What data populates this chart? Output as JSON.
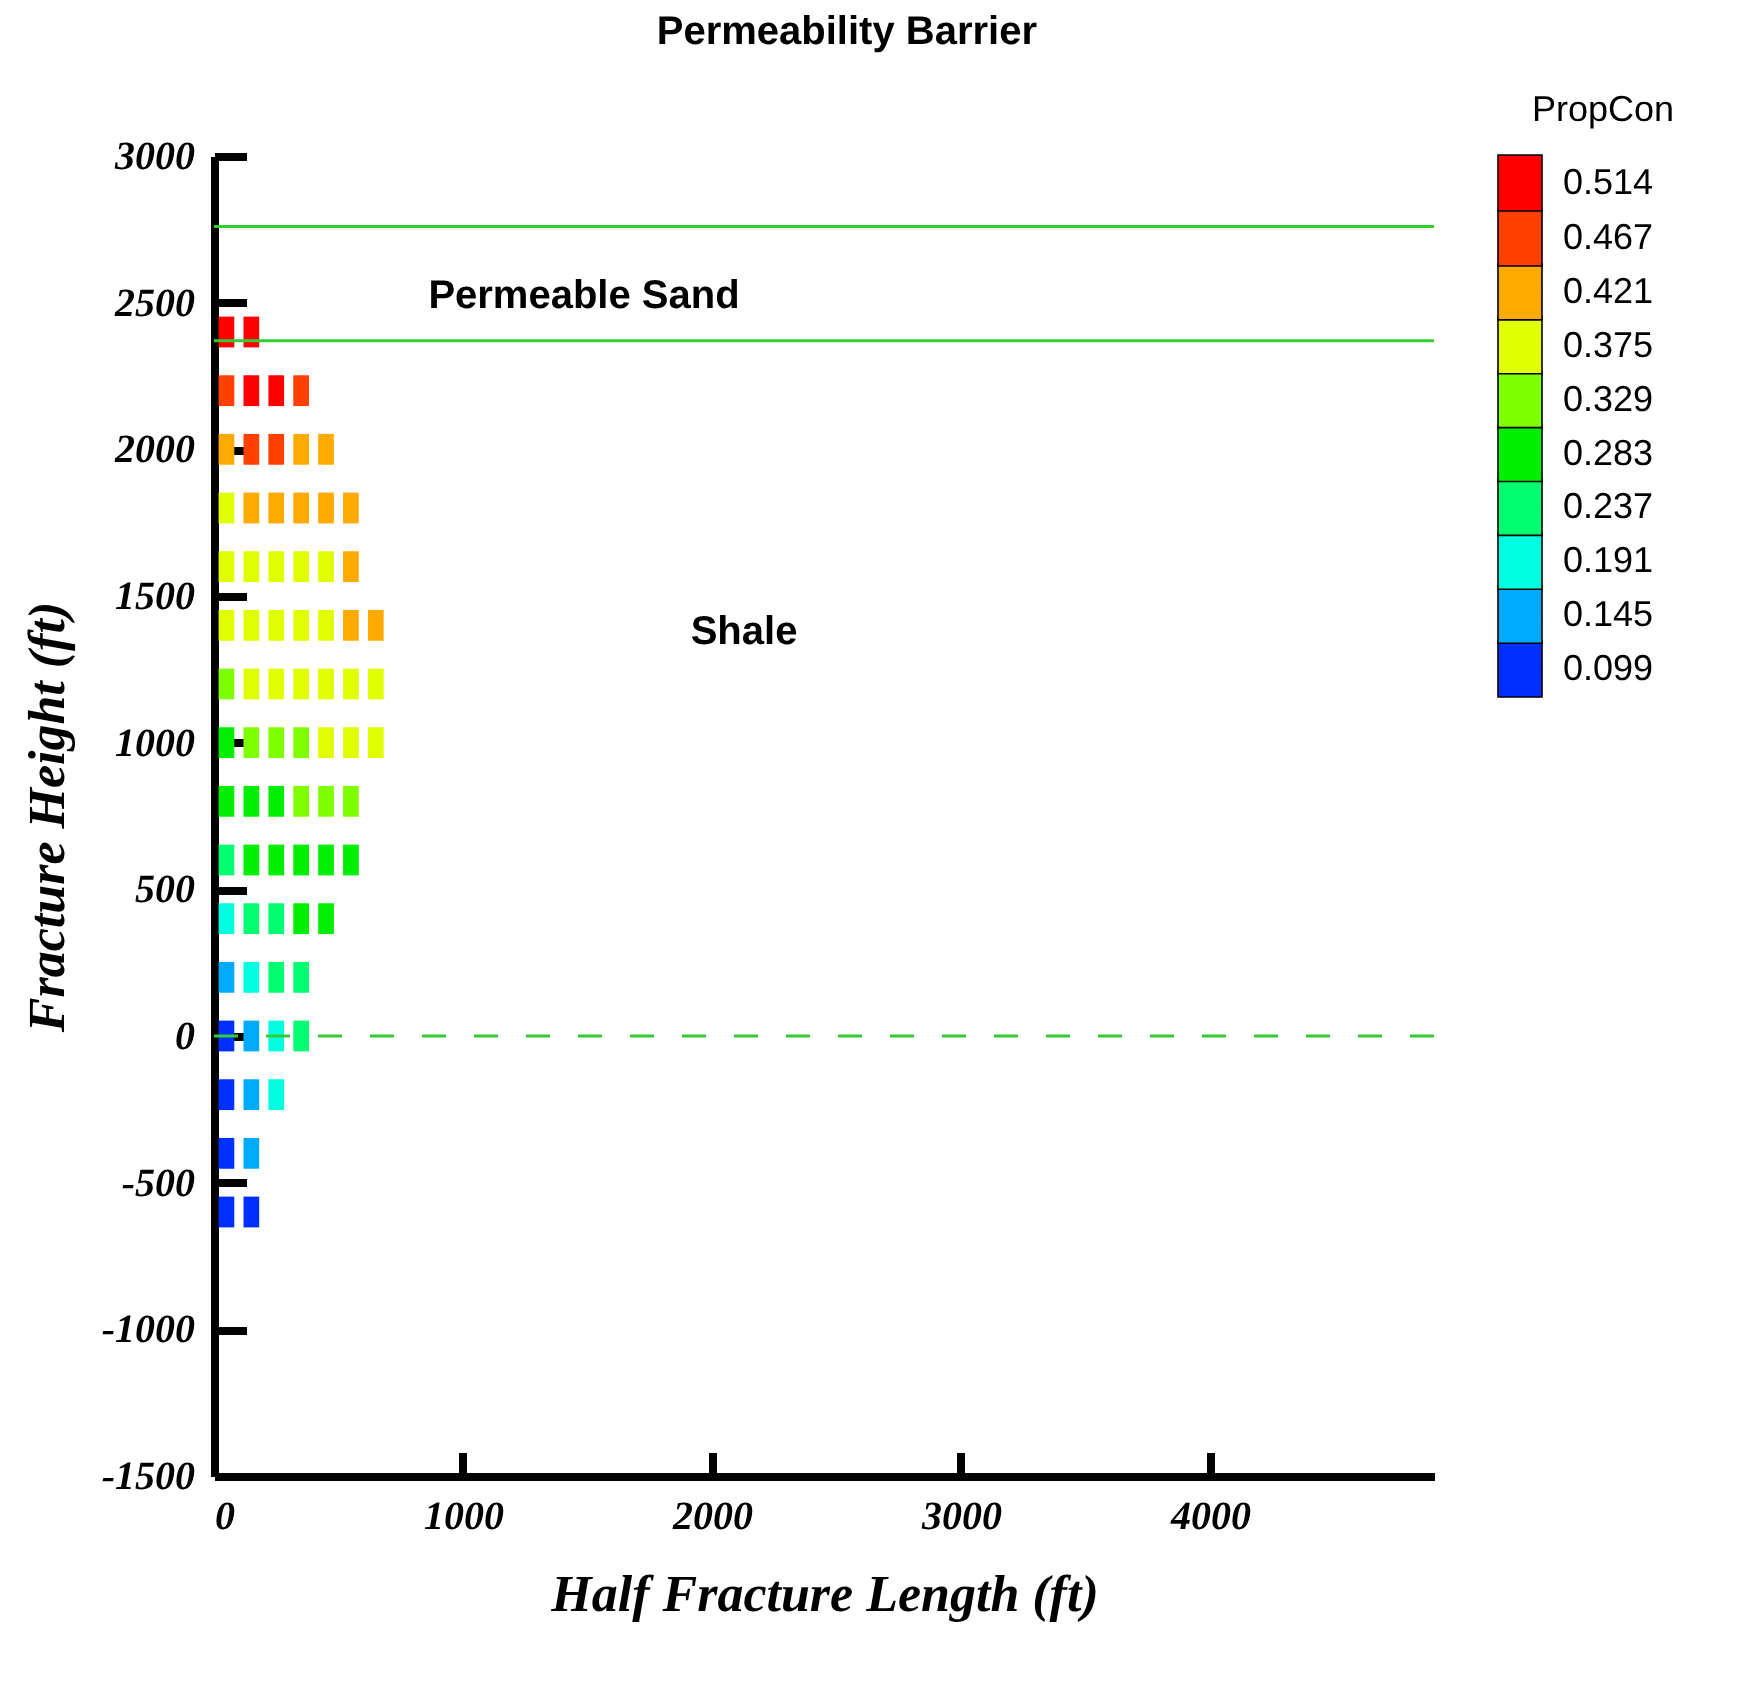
{
  "chart_data": {
    "type": "scatter",
    "title": "Permeability Barrier",
    "xlabel": "Half Fracture Length (ft)",
    "ylabel": "Fracture Height (ft)",
    "clabel": "PropCon",
    "clim": [
      0.076,
      0.537
    ],
    "cticks": [
      0.099,
      0.145,
      0.191,
      0.237,
      0.283,
      0.329,
      0.375,
      0.421,
      0.467,
      0.514
    ],
    "colors": [
      "#0030ff",
      "#00aaff",
      "#00ffe0",
      "#00ff70",
      "#00ee00",
      "#80ff00",
      "#e0ff00",
      "#ffaa00",
      "#ff4000",
      "#ff0000"
    ],
    "xlim": [
      0,
      4900
    ],
    "xticks": [
      0,
      1000,
      2000,
      3000,
      4000
    ],
    "ylim": [
      -1500,
      3000
    ],
    "yticks": [
      -1500,
      -1000,
      -500,
      0,
      500,
      1000,
      1500,
      2000,
      2500,
      3000
    ],
    "grid": false,
    "marker": "square",
    "series": [
      {
        "x": [
          50,
          150,
          50,
          150,
          250,
          350,
          50,
          150,
          250,
          350,
          450,
          50,
          150,
          250,
          350,
          450,
          550,
          50,
          150,
          250,
          350,
          450,
          550,
          50,
          150,
          250,
          350,
          450,
          550,
          650,
          50,
          150,
          250,
          350,
          450,
          550,
          650,
          50,
          150,
          250,
          350,
          450,
          550,
          650,
          50,
          150,
          250,
          350,
          450,
          550,
          50,
          150,
          250,
          350,
          450,
          550,
          50,
          150,
          250,
          350,
          450,
          50,
          150,
          250,
          350,
          50,
          150,
          250,
          350,
          50,
          150,
          250,
          50,
          150,
          50,
          150
        ],
        "values": [
          2400,
          2400,
          2200,
          2200,
          2200,
          2200,
          2000,
          2000,
          2000,
          2000,
          2000,
          1800,
          1800,
          1800,
          1800,
          1800,
          1800,
          1600,
          1600,
          1600,
          1600,
          1600,
          1600,
          1400,
          1400,
          1400,
          1400,
          1400,
          1400,
          1400,
          1200,
          1200,
          1200,
          1200,
          1200,
          1200,
          1200,
          1000,
          1000,
          1000,
          1000,
          1000,
          1000,
          1000,
          800,
          800,
          800,
          800,
          800,
          800,
          600,
          600,
          600,
          600,
          600,
          600,
          400,
          400,
          400,
          400,
          400,
          200,
          200,
          200,
          200,
          0,
          0,
          0,
          0,
          -200,
          -200,
          -200,
          -400,
          -400,
          -600,
          -600
        ],
        "cvalues": [
          0.514,
          0.514,
          0.467,
          0.514,
          0.514,
          0.467,
          0.421,
          0.467,
          0.467,
          0.421,
          0.421,
          0.375,
          0.421,
          0.421,
          0.421,
          0.421,
          0.421,
          0.375,
          0.375,
          0.375,
          0.375,
          0.375,
          0.421,
          0.375,
          0.375,
          0.375,
          0.375,
          0.375,
          0.421,
          0.421,
          0.329,
          0.375,
          0.375,
          0.375,
          0.375,
          0.375,
          0.375,
          0.283,
          0.329,
          0.329,
          0.329,
          0.375,
          0.375,
          0.375,
          0.283,
          0.283,
          0.283,
          0.329,
          0.329,
          0.329,
          0.237,
          0.283,
          0.283,
          0.283,
          0.283,
          0.283,
          0.191,
          0.237,
          0.237,
          0.283,
          0.283,
          0.145,
          0.191,
          0.237,
          0.237,
          0.099,
          0.145,
          0.191,
          0.237,
          0.099,
          0.145,
          0.191,
          0.099,
          0.145,
          0.099,
          0.099
        ]
      }
    ],
    "ref_lines": [
      {
        "axis": "y",
        "value": 2760,
        "color": "#33cc33",
        "line_style": "solid"
      },
      {
        "axis": "y",
        "value": 2370,
        "color": "#33cc33",
        "line_style": "solid"
      },
      {
        "axis": "y",
        "value": 0,
        "color": "#33cc33",
        "line_style": "dashed"
      }
    ],
    "annotations": [
      "Permeable Sand",
      "Shale"
    ]
  }
}
